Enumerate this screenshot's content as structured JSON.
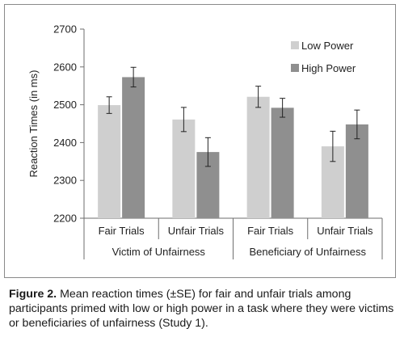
{
  "chart_data": {
    "type": "bar",
    "ylabel": "Reaction Times (in ms)",
    "xlabel": "",
    "ylim": [
      2200,
      2700
    ],
    "yticks": [
      2200,
      2300,
      2400,
      2500,
      2600,
      2700
    ],
    "groups": [
      "Victim of Unfairness",
      "Beneficiary of Unfairness"
    ],
    "categories": [
      "Fair Trials",
      "Unfair Trials",
      "Fair Trials",
      "Unfair Trials"
    ],
    "series": [
      {
        "name": "Low Power",
        "color": "#cfcfcf",
        "values": [
          2499,
          2461,
          2521,
          2390
        ],
        "se": [
          22,
          32,
          28,
          40
        ]
      },
      {
        "name": "High Power",
        "color": "#8f8f8f",
        "values": [
          2573,
          2375,
          2492,
          2448
        ],
        "se": [
          26,
          38,
          25,
          38
        ]
      }
    ],
    "legend_position": "top-right",
    "grid": false
  },
  "caption": {
    "label": "Figure 2.",
    "text": "Mean reaction times (±SE) for fair and unfair trials among participants primed with low or high power in a task where they were victims or beneficiaries of unfairness (Study 1)."
  }
}
